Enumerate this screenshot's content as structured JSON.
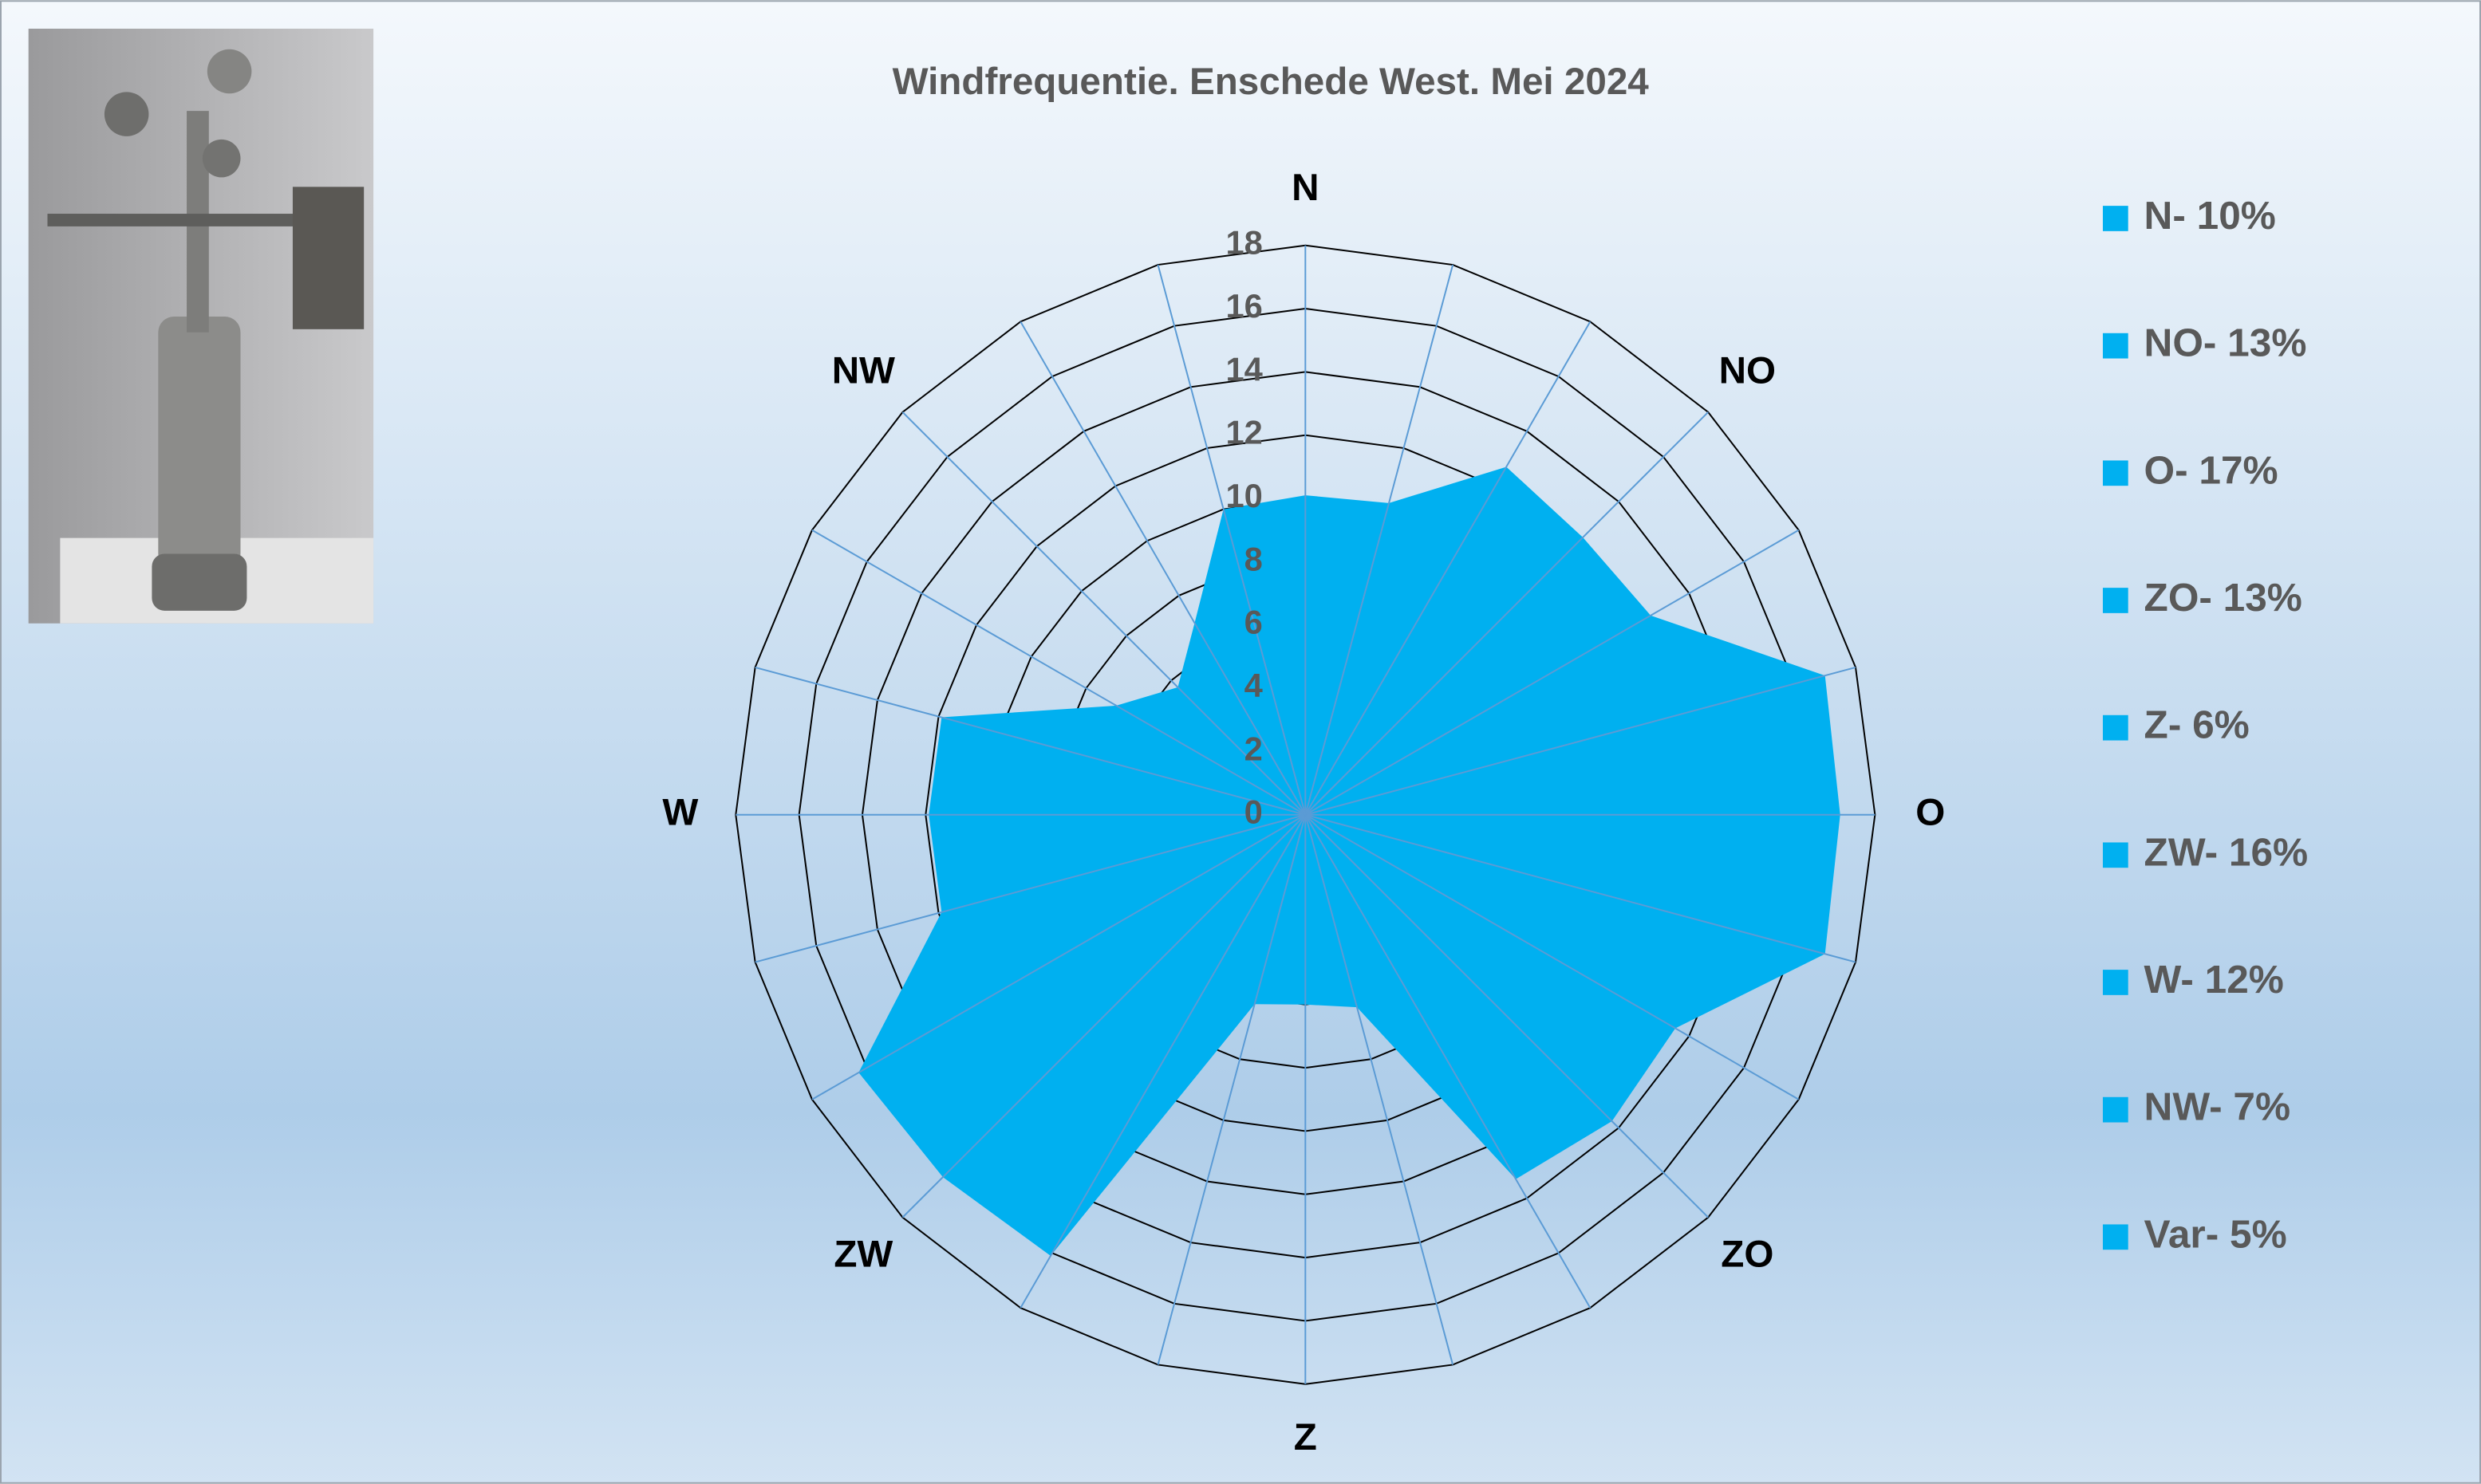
{
  "chart_data": {
    "type": "radar",
    "title": "Windfrequentie. Enschede West. Mei 2024",
    "categories": [
      "N",
      null,
      null,
      "NO",
      null,
      null,
      "O",
      null,
      null,
      "ZO",
      null,
      null,
      "Z",
      null,
      null,
      "ZW",
      null,
      null,
      "W",
      null,
      null,
      "NW",
      null,
      null
    ],
    "series": [
      {
        "name": "Windfrequentie",
        "color": "#00b0f0",
        "values": [
          10.1,
          10.2,
          12.7,
          12.4,
          12.6,
          17,
          16.9,
          17,
          13.5,
          13.7,
          13.3,
          6.3,
          6,
          6.2,
          16.1,
          16.2,
          16.3,
          11.9,
          11.9,
          11.9,
          6.9,
          5.7,
          7,
          10
        ]
      }
    ],
    "ylim": [
      0,
      18
    ],
    "yticks": [
      0,
      2,
      4,
      6,
      8,
      10,
      12,
      14,
      16,
      18
    ],
    "legend_entries": [
      "N- 10%",
      "NO- 13%",
      "O- 17%",
      "ZO- 13%",
      "Z- 6%",
      "ZW- 16%",
      "W- 12%",
      "NW- 7%",
      "Var- 5%"
    ],
    "legend_position": "right",
    "grid": true
  }
}
